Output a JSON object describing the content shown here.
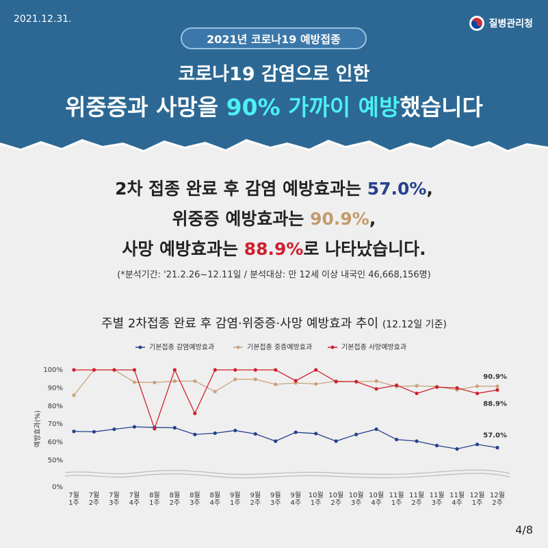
{
  "header": {
    "date": "2021.12.31.",
    "agency": "질병관리청",
    "badge": "2021년 코로나19 예방접종",
    "headline": [
      [
        {
          "text": "코로나19 감염으로 인한"
        }
      ],
      [
        {
          "text": "위중증과 사망을 "
        },
        {
          "text": "90% 가까이 예방",
          "color": "#4cf0f4"
        },
        {
          "text": "했습니다"
        }
      ]
    ]
  },
  "summary": {
    "lines": [
      [
        {
          "text": "2차 접종 완료 후 감염 예방효과는 "
        },
        {
          "text": "57.0%",
          "color": "#26408c"
        },
        {
          "text": ","
        }
      ],
      [
        {
          "text": "위중증 예방효과는 "
        },
        {
          "text": "90.9%",
          "color": "#c49a6c"
        },
        {
          "text": ","
        }
      ],
      [
        {
          "text": "사망 예방효과는 "
        },
        {
          "text": "88.9%",
          "color": "#cf1f2e"
        },
        {
          "text": "로 나타났습니다."
        }
      ]
    ],
    "note": "(*분석기간: '21.2.26~12.11일 / 분석대상: 만 12세 이상 내국인 46,668,156명)"
  },
  "chart_data": {
    "type": "line",
    "title": "주별 2차접종 완료 후 감염·위중증·사망 예방효과 추이",
    "subtitle": "(12.12일 기준)",
    "y_label": "예방효과(%)",
    "categories": [
      [
        "7월",
        "1주"
      ],
      [
        "7월",
        "2주"
      ],
      [
        "7월",
        "3주"
      ],
      [
        "7월",
        "4주"
      ],
      [
        "8월",
        "1주"
      ],
      [
        "8월",
        "2주"
      ],
      [
        "8월",
        "3주"
      ],
      [
        "8월",
        "4주"
      ],
      [
        "9월",
        "1주"
      ],
      [
        "9월",
        "2주"
      ],
      [
        "9월",
        "3주"
      ],
      [
        "9월",
        "4주"
      ],
      [
        "10월",
        "1주"
      ],
      [
        "10월",
        "2주"
      ],
      [
        "10월",
        "3주"
      ],
      [
        "10월",
        "4주"
      ],
      [
        "11월",
        "1주"
      ],
      [
        "11월",
        "2주"
      ],
      [
        "11월",
        "3주"
      ],
      [
        "11월",
        "4주"
      ],
      [
        "12월",
        "1주"
      ],
      [
        "12월",
        "2주"
      ]
    ],
    "series": [
      {
        "name": "기본접종 감염예방효과",
        "color": "#26408c",
        "values": [
          66,
          65.8,
          67.2,
          68.5,
          68.2,
          68,
          64.3,
          65,
          66.5,
          64.6,
          60.6,
          65.5,
          64.8,
          60.6,
          64.3,
          67.2,
          61.5,
          60.6,
          58.2,
          56.3,
          58.8,
          57.0
        ],
        "value_labels": [
          null,
          null,
          null,
          null,
          null,
          null,
          null,
          null,
          null,
          null,
          null,
          null,
          null,
          null,
          null,
          null,
          null,
          null,
          null,
          null,
          null,
          "57.0%"
        ]
      },
      {
        "name": "기본접종 중증예방효과",
        "color": "#c9a27a",
        "values": [
          86,
          100,
          100,
          93.2,
          93,
          93.8,
          93.8,
          88,
          94.8,
          94.8,
          92,
          92.8,
          92.2,
          93.8,
          93.5,
          93.8,
          90.8,
          91.2,
          90.8,
          89,
          91,
          90.9
        ],
        "value_labels": [
          null,
          null,
          null,
          null,
          null,
          null,
          null,
          null,
          null,
          null,
          null,
          null,
          null,
          null,
          null,
          null,
          null,
          null,
          null,
          null,
          null,
          "90.9%"
        ]
      },
      {
        "name": "기본접종 사망예방효과",
        "color": "#cf1f2e",
        "values": [
          100,
          100,
          100,
          100,
          67.5,
          100,
          76,
          100,
          100,
          100,
          100,
          94,
          100,
          93.5,
          93.5,
          89.5,
          91.5,
          87,
          90.5,
          90,
          87,
          88.9
        ],
        "value_labels": [
          null,
          null,
          null,
          null,
          null,
          null,
          null,
          null,
          null,
          null,
          null,
          null,
          null,
          null,
          null,
          null,
          null,
          null,
          null,
          null,
          null,
          "88.9%"
        ]
      }
    ],
    "ylim": [
      0,
      100
    ],
    "y_break": [
      0,
      50
    ],
    "yticks": [
      {
        "value": 0,
        "label": "0%"
      },
      {
        "value": 50,
        "label": "50%"
      },
      {
        "value": 60,
        "label": "60%"
      },
      {
        "value": 70,
        "label": "70%"
      },
      {
        "value": 80,
        "label": "80%"
      },
      {
        "value": 90,
        "label": "90%"
      },
      {
        "value": 100,
        "label": "100%"
      }
    ],
    "legend": "top",
    "grid": false
  },
  "footer": {
    "page": "4/8"
  }
}
